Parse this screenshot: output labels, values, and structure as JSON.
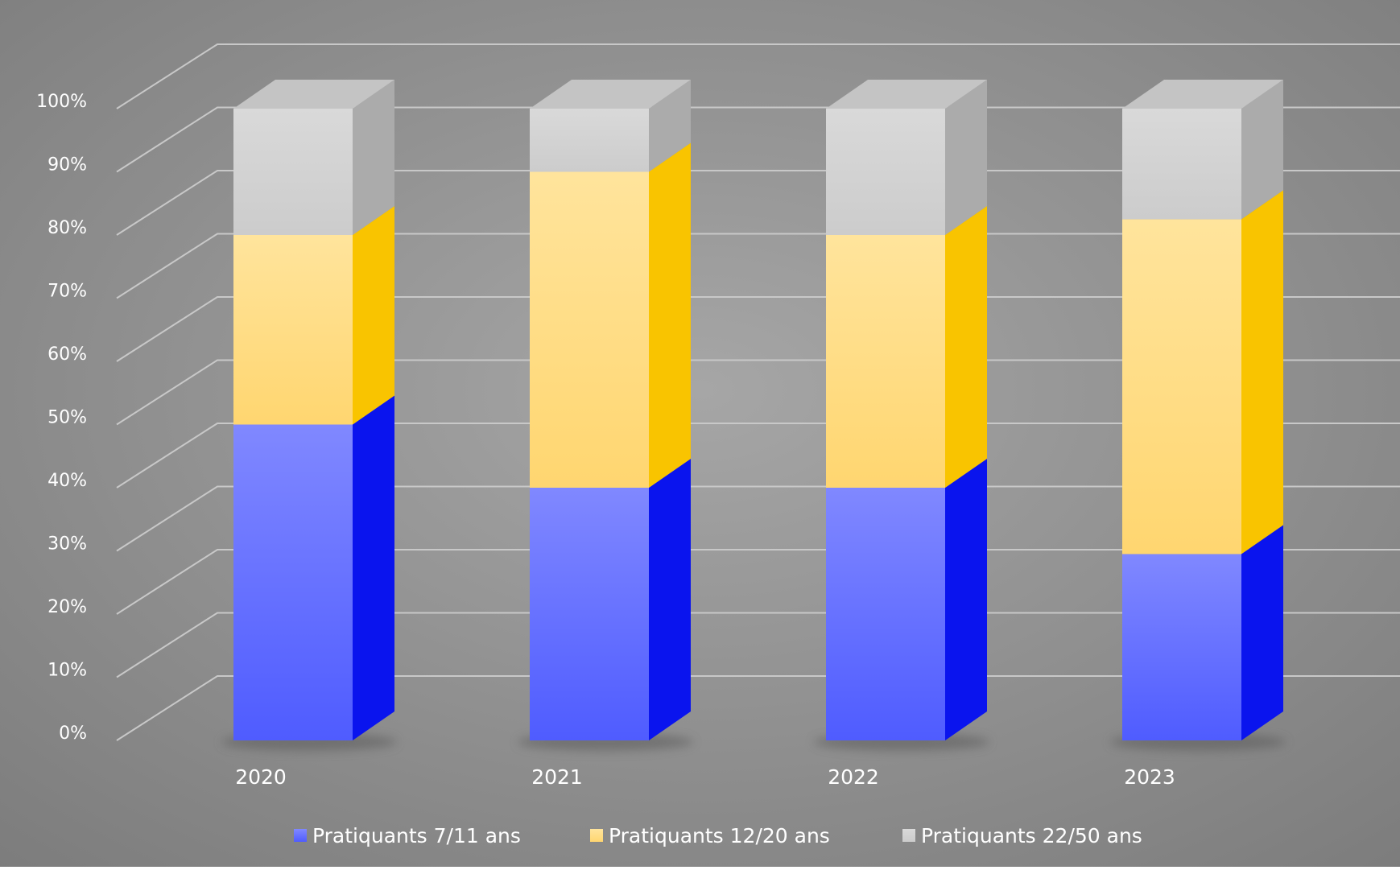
{
  "chart_data": {
    "type": "bar",
    "stacked": true,
    "three_d": true,
    "title": "",
    "xlabel": "",
    "ylabel": "",
    "categories": [
      "2020",
      "2021",
      "2022",
      "2023"
    ],
    "series": [
      {
        "name": "Pratiquants 7/11 ans",
        "values": [
          50,
          40,
          40,
          29.5
        ],
        "front_color": "#6a76ff",
        "side_color": "#0a14ee"
      },
      {
        "name": "Pratiquants 12/20 ans",
        "values": [
          30,
          50,
          40,
          53
        ],
        "front_color": "#ffdf8a",
        "side_color": "#f9c400"
      },
      {
        "name": "Pratiquants 22/50 ans",
        "values": [
          20,
          10,
          20,
          17.5
        ],
        "front_color": "#d3d3d3",
        "side_color": "#ababab"
      }
    ],
    "y_ticks": [
      "0%",
      "10%",
      "20%",
      "30%",
      "40%",
      "50%",
      "60%",
      "70%",
      "80%",
      "90%",
      "100%"
    ],
    "ylim": [
      0,
      100
    ],
    "grid": true,
    "legend_position": "bottom",
    "background_color": "#8e8e8e"
  }
}
